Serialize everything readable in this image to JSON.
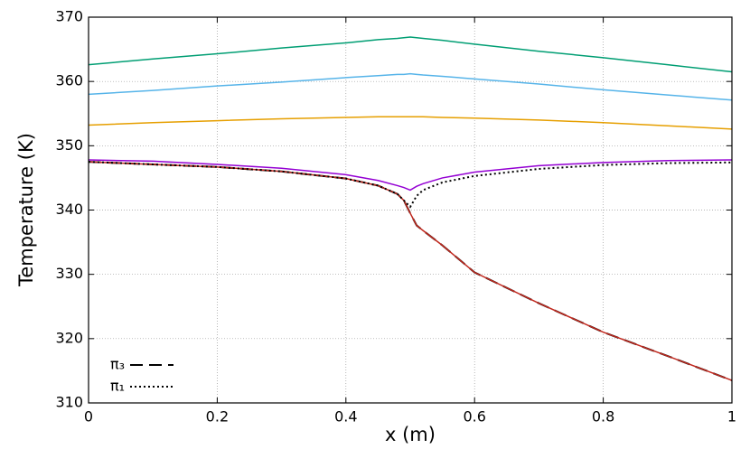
{
  "chart_data": {
    "type": "line",
    "x_label": "x (m)",
    "y_label": "Temperature (K)",
    "x": [
      0,
      0.1,
      0.2,
      0.3,
      0.4,
      0.45,
      0.48,
      0.49,
      0.5,
      0.51,
      0.52,
      0.55,
      0.6,
      0.7,
      0.8,
      0.9,
      1
    ],
    "xlim": [
      0,
      1
    ],
    "ylim": [
      310,
      370
    ],
    "xticks": [
      0,
      0.2,
      0.4,
      0.6,
      0.8,
      1
    ],
    "yticks": [
      310,
      320,
      330,
      340,
      350,
      360,
      370
    ],
    "grid": true,
    "legend_position": "lower left",
    "series": [
      {
        "color": "#009e73",
        "values": [
          362.6,
          363.5,
          364.3,
          365.2,
          366.0,
          366.5,
          366.7,
          366.8,
          366.9,
          366.8,
          366.7,
          366.4,
          365.8,
          364.7,
          363.7,
          362.6,
          361.5
        ]
      },
      {
        "color": "#56b4e9",
        "values": [
          358.0,
          358.6,
          359.3,
          359.9,
          360.6,
          360.9,
          361.1,
          361.1,
          361.2,
          361.1,
          361.0,
          360.8,
          360.4,
          359.6,
          358.7,
          357.9,
          357.1
        ]
      },
      {
        "color": "#e69f00",
        "values": [
          353.2,
          353.6,
          353.9,
          354.2,
          354.4,
          354.5,
          354.5,
          354.5,
          354.5,
          354.5,
          354.5,
          354.4,
          354.3,
          354.0,
          353.6,
          353.1,
          352.6
        ]
      },
      {
        "color": "#9400d3",
        "values": [
          347.8,
          347.6,
          347.1,
          346.5,
          345.5,
          344.6,
          343.8,
          343.5,
          343.1,
          343.7,
          344.1,
          345.0,
          345.9,
          346.9,
          347.4,
          347.7,
          347.8
        ]
      },
      {
        "name": "π₃",
        "color": "#000000",
        "dash": "14,7",
        "values": [
          347.5,
          347.1,
          346.7,
          346.0,
          344.9,
          343.8,
          342.5,
          341.5,
          339.5,
          337.6,
          336.8,
          334.5,
          330.3,
          325.5,
          321.0,
          317.3,
          313.5
        ]
      },
      {
        "color": "#c0281e",
        "values": [
          347.5,
          347.1,
          346.7,
          346.0,
          344.9,
          343.8,
          342.5,
          341.5,
          339.5,
          337.6,
          336.8,
          334.5,
          330.3,
          325.5,
          321.0,
          317.3,
          313.5
        ]
      },
      {
        "name": "π₁",
        "color": "#000000",
        "dash": "2,3",
        "values": [
          347.5,
          347.1,
          346.7,
          346.0,
          344.9,
          343.8,
          342.5,
          341.5,
          340.5,
          342.2,
          343.1,
          344.3,
          345.3,
          346.4,
          347.0,
          347.3,
          347.4
        ]
      }
    ]
  }
}
